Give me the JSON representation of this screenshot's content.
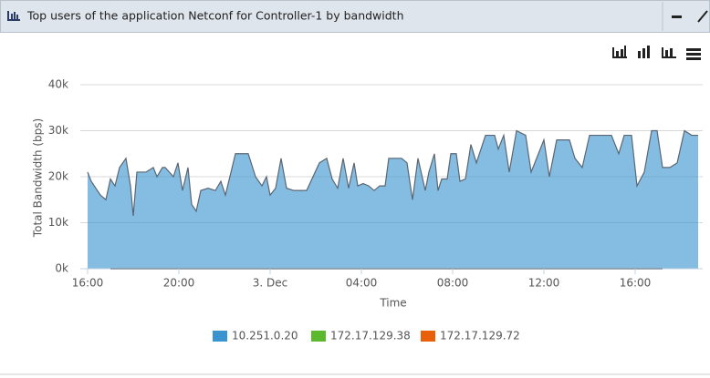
{
  "chart_data": {
    "type": "area",
    "title": "Top users of the application Netconf for Controller-1 by bandwidth",
    "xlabel": "Time",
    "ylabel": "Total Bandwidth (bps)",
    "x": [
      0,
      0.16,
      0.56,
      0.8,
      1,
      1.2,
      1.4,
      1.68,
      1.88,
      2,
      2.16,
      2.56,
      2.88,
      3.04,
      3.28,
      3.4,
      3.76,
      3.96,
      4.16,
      4.4,
      4.56,
      4.76,
      4.96,
      5.28,
      5.6,
      5.84,
      6.04,
      6.48,
      7.04,
      7.36,
      7.64,
      7.84,
      8,
      8.24,
      8.48,
      8.72,
      9.04,
      9.6,
      10.16,
      10.48,
      10.72,
      10.96,
      11.2,
      11.44,
      11.68,
      11.84,
      12.08,
      12.32,
      12.56,
      12.8,
      13.04,
      13.2,
      13.76,
      14,
      14.24,
      14.48,
      14.8,
      14.96,
      15.2,
      15.36,
      15.52,
      15.76,
      15.92,
      16.16,
      16.32,
      16.56,
      16.8,
      17.04,
      17.44,
      17.84,
      18,
      18.24,
      18.48,
      18.8,
      19.2,
      19.44,
      19.76,
      20,
      20.24,
      20.56,
      20.88,
      21.12,
      21.36,
      21.68,
      22,
      22.4,
      22.96,
      23.28,
      23.52,
      23.84,
      24.08,
      24.4,
      24.72,
      24.96,
      25.2,
      25.52,
      25.84,
      26.16,
      26.48,
      26.76
    ],
    "series": [
      {
        "name": "10.251.0.20",
        "color": "#3a94d0",
        "values": [
          21000,
          19000,
          16000,
          15000,
          19500,
          18000,
          22000,
          24000,
          18000,
          11500,
          21000,
          21000,
          22000,
          20000,
          22000,
          22000,
          20000,
          23000,
          17000,
          22000,
          14000,
          12500,
          17000,
          17500,
          17000,
          19000,
          16000,
          25000,
          25000,
          20000,
          18000,
          20000,
          16000,
          17500,
          24000,
          17500,
          17000,
          17000,
          23000,
          24000,
          19500,
          17500,
          24000,
          17500,
          23000,
          18000,
          18500,
          18000,
          17000,
          18000,
          18000,
          24000,
          24000,
          23000,
          15000,
          24000,
          17000,
          21000,
          25000,
          17000,
          19500,
          19500,
          25000,
          25000,
          19000,
          19500,
          27000,
          23000,
          29000,
          29000,
          26000,
          29000,
          21000,
          30000,
          29000,
          21000,
          25000,
          28000,
          20000,
          28000,
          28000,
          28000,
          24000,
          22000,
          29000,
          29000,
          29000,
          25000,
          29000,
          29000,
          18000,
          21000,
          30000,
          30000,
          22000,
          22000,
          23000,
          30000,
          29000,
          29000
        ]
      },
      {
        "name": "172.17.129.38",
        "color": "#5cb82c",
        "values": [
          null,
          null,
          null,
          null,
          0,
          0,
          0,
          0,
          0,
          0,
          0,
          0,
          0,
          0,
          0,
          0,
          0,
          0,
          0,
          0,
          0,
          0,
          0,
          0,
          0,
          0,
          0,
          0,
          0,
          0,
          0,
          0,
          0,
          0,
          0,
          0,
          0,
          0,
          0,
          0,
          0,
          0,
          0,
          0,
          0,
          0,
          0,
          0,
          0,
          0,
          0,
          0,
          0,
          0,
          0,
          0,
          0,
          0,
          0,
          0,
          0,
          0,
          0,
          0,
          0,
          0,
          0,
          0,
          0,
          0,
          0,
          0,
          0,
          0,
          0,
          0,
          0,
          0,
          0,
          0,
          0,
          0,
          0,
          0,
          0,
          0,
          0,
          0,
          0,
          0,
          0,
          0,
          0,
          0,
          0,
          null,
          null,
          null,
          null,
          null
        ]
      },
      {
        "name": "172.17.129.72",
        "color": "#e8600a",
        "values": [
          null,
          null,
          null,
          null,
          0,
          0,
          0,
          0,
          0,
          0,
          0,
          0,
          0,
          0,
          0,
          0,
          0,
          0,
          0,
          0,
          0,
          0,
          0,
          0,
          0,
          0,
          0,
          0,
          0,
          0,
          0,
          0,
          0,
          0,
          0,
          0,
          0,
          0,
          0,
          0,
          0,
          0,
          0,
          0,
          0,
          0,
          0,
          0,
          0,
          0,
          0,
          0,
          0,
          0,
          0,
          0,
          0,
          0,
          0,
          0,
          0,
          0,
          0,
          0,
          0,
          0,
          0,
          0,
          0,
          0,
          0,
          0,
          0,
          0,
          0,
          0,
          0,
          0,
          0,
          0,
          0,
          0,
          0,
          0,
          0,
          0,
          0,
          0,
          0,
          0,
          0,
          0,
          0,
          0,
          0,
          null,
          null,
          null,
          null,
          null
        ]
      }
    ],
    "xlim": [
      0,
      26.96
    ],
    "xticks": [
      {
        "value": 0,
        "label": "16:00"
      },
      {
        "value": 4,
        "label": "20:00"
      },
      {
        "value": 8,
        "label": "3. Dec"
      },
      {
        "value": 12,
        "label": "04:00"
      },
      {
        "value": 16,
        "label": "08:00"
      },
      {
        "value": 20,
        "label": "12:00"
      },
      {
        "value": 24,
        "label": "16:00"
      }
    ],
    "ylim": [
      0,
      40000
    ],
    "yticks": [
      {
        "value": 0,
        "label": "0k"
      },
      {
        "value": 10000,
        "label": "10k"
      },
      {
        "value": 20000,
        "label": "20k"
      },
      {
        "value": 30000,
        "label": "30k"
      },
      {
        "value": 40000,
        "label": "40k"
      }
    ],
    "grid": true,
    "legend": "bottom"
  }
}
